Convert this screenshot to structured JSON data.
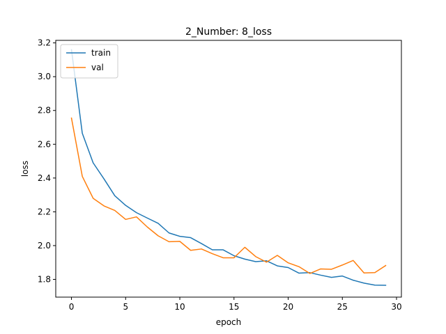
{
  "chart_data": {
    "type": "line",
    "title": "2_Number: 8_loss",
    "xlabel": "epoch",
    "ylabel": "loss",
    "xlim": [
      -1.45,
      30.45
    ],
    "ylim": [
      1.695,
      3.215
    ],
    "xticks": [
      0,
      5,
      10,
      15,
      20,
      25,
      30
    ],
    "yticks": [
      1.8,
      2.0,
      2.2,
      2.4,
      2.6,
      2.8,
      3.0,
      3.2
    ],
    "ytick_labels": [
      "1.8",
      "2.0",
      "2.2",
      "2.4",
      "2.6",
      "2.8",
      "3.0",
      "3.2"
    ],
    "grid": false,
    "legend_position": "upper-left",
    "x": [
      0,
      1,
      2,
      3,
      4,
      5,
      6,
      7,
      8,
      9,
      10,
      11,
      12,
      13,
      14,
      15,
      16,
      17,
      18,
      19,
      20,
      21,
      22,
      23,
      24,
      25,
      26,
      27,
      28,
      29
    ],
    "series": [
      {
        "name": "train",
        "color": "#1f77b4",
        "values": [
          3.16,
          2.665,
          2.49,
          2.395,
          2.295,
          2.238,
          2.195,
          2.163,
          2.132,
          2.075,
          2.055,
          2.047,
          2.012,
          1.975,
          1.975,
          1.94,
          1.92,
          1.905,
          1.91,
          1.88,
          1.87,
          1.837,
          1.84,
          1.825,
          1.812,
          1.82,
          1.795,
          1.778,
          1.766,
          1.765
        ]
      },
      {
        "name": "val",
        "color": "#ff7f0e",
        "values": [
          2.755,
          2.41,
          2.28,
          2.235,
          2.208,
          2.155,
          2.17,
          2.11,
          2.058,
          2.023,
          2.025,
          1.972,
          1.98,
          1.952,
          1.928,
          1.928,
          1.99,
          1.935,
          1.902,
          1.942,
          1.898,
          1.875,
          1.835,
          1.862,
          1.86,
          1.885,
          1.912,
          1.838,
          1.84,
          1.882
        ]
      }
    ]
  }
}
